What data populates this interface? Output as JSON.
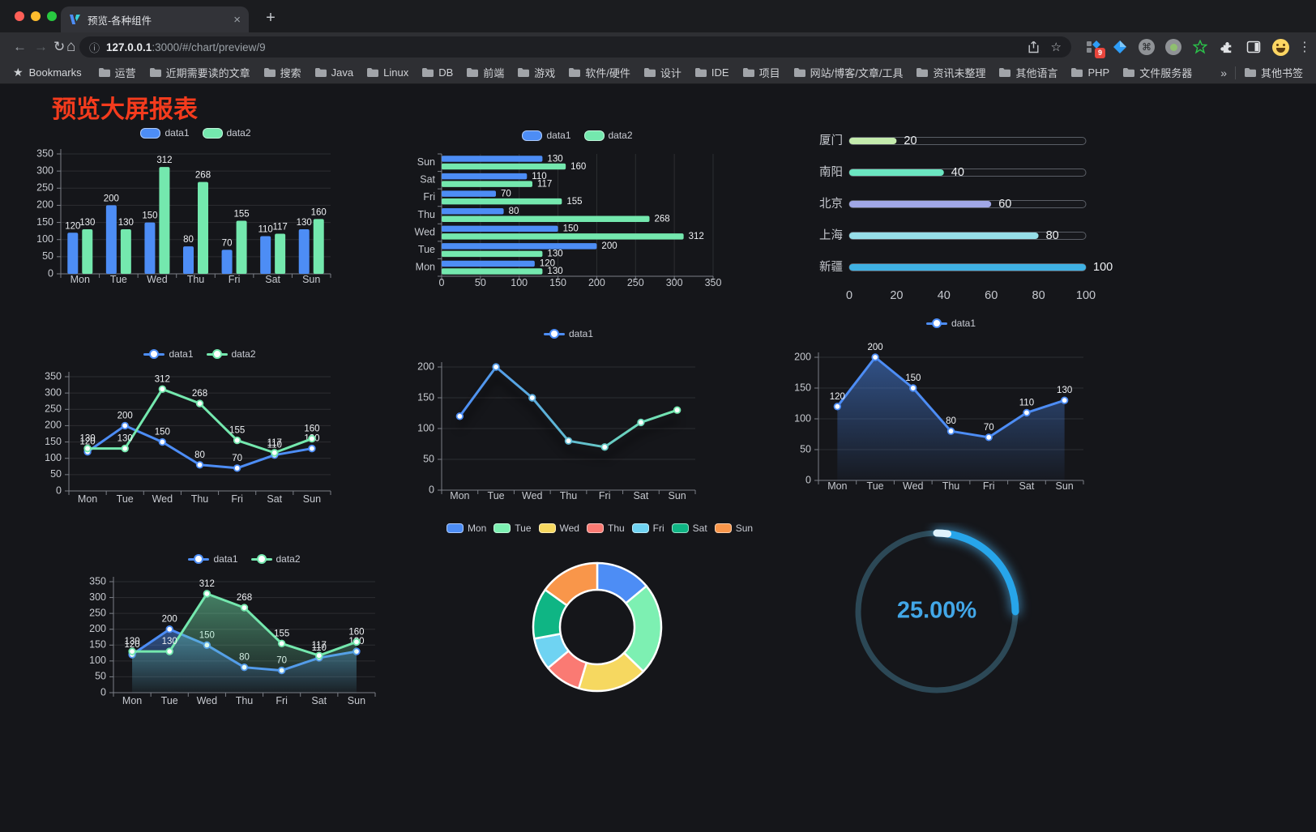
{
  "browser": {
    "tab_title": "预览-各种组件",
    "url_host": "127.0.0.1",
    "url_path": ":3000/#/chart/preview/9",
    "bookmarks_label": "Bookmarks",
    "bookmarks": [
      "运营",
      "近期需要读的文章",
      "搜索",
      "Java",
      "Linux",
      "DB",
      "前端",
      "游戏",
      "软件/硬件",
      "设计",
      "IDE",
      "项目",
      "网站/博客/文章/工具",
      "资讯未整理",
      "其他语言",
      "PHP",
      "文件服务器"
    ],
    "other_bookmarks": "其他书签",
    "extension_badge": "9",
    "icons": {
      "back": "←",
      "forward": "→",
      "reload": "↻",
      "home": "⌂",
      "info": "ⓘ",
      "star": "☆",
      "close": "×",
      "new_tab": "+",
      "more": "⋮",
      "overflow": "»",
      "cmd": "⌘",
      "bookmarks_star": "★"
    }
  },
  "page": {
    "title": "预览大屏报表"
  },
  "palette": {
    "data1": "#4d8df5",
    "data2": "#74e8ae",
    "axis_text": "#c6c9cf",
    "value_text": "#eef0f3",
    "grid": "rgba(255,255,255,0.10)",
    "axis_line": "#7b7f87",
    "title_red": "#f43b1d",
    "page_bg": "#15161a"
  },
  "chart_data": [
    {
      "id": "grouped-bar",
      "type": "bar",
      "categories": [
        "Mon",
        "Tue",
        "Wed",
        "Thu",
        "Fri",
        "Sat",
        "Sun"
      ],
      "series": [
        {
          "name": "data1",
          "color": "#4d8df5",
          "values": [
            120,
            200,
            150,
            80,
            70,
            110,
            130
          ]
        },
        {
          "name": "data2",
          "color": "#74e8ae",
          "values": [
            130,
            130,
            312,
            268,
            155,
            117,
            160
          ]
        }
      ],
      "ylim": [
        0,
        350
      ],
      "yticks": [
        0,
        50,
        100,
        150,
        200,
        250,
        300,
        350
      ],
      "legend_position": "top",
      "value_labels": true
    },
    {
      "id": "grouped-hbar",
      "type": "hbar",
      "categories": [
        "Mon",
        "Tue",
        "Wed",
        "Thu",
        "Fri",
        "Sat",
        "Sun"
      ],
      "display_top_to_bottom": [
        "Sun",
        "Sat",
        "Fri",
        "Thu",
        "Wed",
        "Tue",
        "Mon"
      ],
      "series": [
        {
          "name": "data1",
          "color": "#4d8df5",
          "values": [
            120,
            200,
            150,
            80,
            70,
            110,
            130
          ]
        },
        {
          "name": "data2",
          "color": "#74e8ae",
          "values": [
            130,
            130,
            312,
            268,
            155,
            117,
            160
          ]
        }
      ],
      "xlim": [
        0,
        350
      ],
      "xticks": [
        0,
        50,
        100,
        150,
        200,
        250,
        300,
        350
      ],
      "legend_position": "top",
      "value_labels": true
    },
    {
      "id": "progress",
      "type": "bar",
      "variant": "progress-bars",
      "rows": [
        {
          "label": "厦门",
          "value": 20,
          "color": "#c4ebad"
        },
        {
          "label": "南阳",
          "value": 40,
          "color": "#6be6c1"
        },
        {
          "label": "北京",
          "value": 60,
          "color": "#a0a7e6"
        },
        {
          "label": "上海",
          "value": 80,
          "color": "#96dee8"
        },
        {
          "label": "新疆",
          "value": 100,
          "color": "#3fb1e3"
        }
      ],
      "xlim": [
        0,
        100
      ],
      "xticks": [
        0,
        20,
        40,
        60,
        80,
        100
      ]
    },
    {
      "id": "line-dual",
      "type": "line",
      "categories": [
        "Mon",
        "Tue",
        "Wed",
        "Thu",
        "Fri",
        "Sat",
        "Sun"
      ],
      "series": [
        {
          "name": "data1",
          "color": "#4d8df5",
          "values": [
            120,
            200,
            150,
            80,
            70,
            110,
            130
          ]
        },
        {
          "name": "data2",
          "color": "#74e8ae",
          "values": [
            130,
            130,
            312,
            268,
            155,
            117,
            160
          ]
        }
      ],
      "ylim": [
        0,
        350
      ],
      "yticks": [
        0,
        50,
        100,
        150,
        200,
        250,
        300,
        350
      ],
      "legend_position": "top",
      "value_labels": true
    },
    {
      "id": "line-gradient",
      "type": "line",
      "categories": [
        "Mon",
        "Tue",
        "Wed",
        "Thu",
        "Fri",
        "Sat",
        "Sun"
      ],
      "series": [
        {
          "name": "data1",
          "gradient": [
            "#4d8df5",
            "#74e8ae"
          ],
          "values": [
            120,
            200,
            150,
            80,
            70,
            110,
            130
          ]
        }
      ],
      "ylim": [
        0,
        200
      ],
      "yticks": [
        0,
        50,
        100,
        150,
        200
      ],
      "legend_position": "top",
      "value_labels": false
    },
    {
      "id": "area-single",
      "type": "area",
      "categories": [
        "Mon",
        "Tue",
        "Wed",
        "Thu",
        "Fri",
        "Sat",
        "Sun"
      ],
      "series": [
        {
          "name": "data1",
          "color": "#4d8df5",
          "values": [
            120,
            200,
            150,
            80,
            70,
            110,
            130
          ]
        }
      ],
      "ylim": [
        0,
        200
      ],
      "yticks": [
        0,
        50,
        100,
        150,
        200
      ],
      "legend_position": "top",
      "value_labels": true
    },
    {
      "id": "area-dual",
      "type": "area",
      "categories": [
        "Mon",
        "Tue",
        "Wed",
        "Thu",
        "Fri",
        "Sat",
        "Sun"
      ],
      "series": [
        {
          "name": "data1",
          "color": "#4d8df5",
          "values": [
            120,
            200,
            150,
            80,
            70,
            110,
            130
          ]
        },
        {
          "name": "data2",
          "color": "#74e8ae",
          "values": [
            130,
            130,
            312,
            268,
            155,
            117,
            160
          ]
        }
      ],
      "ylim": [
        0,
        350
      ],
      "yticks": [
        0,
        50,
        100,
        150,
        200,
        250,
        300,
        350
      ],
      "legend_position": "top",
      "value_labels": true
    },
    {
      "id": "donut",
      "type": "pie",
      "categories": [
        "Mon",
        "Tue",
        "Wed",
        "Thu",
        "Fri",
        "Sat",
        "Sun"
      ],
      "values": [
        120,
        200,
        150,
        80,
        70,
        110,
        130
      ],
      "colors": [
        "#4d8df5",
        "#7df0b2",
        "#f6d860",
        "#fa7a73",
        "#6fd3f2",
        "#0fb584",
        "#f9964a"
      ],
      "inner_radius_ratio": 0.58,
      "legend_position": "top"
    },
    {
      "id": "gauge",
      "type": "gauge",
      "percent": 25,
      "label": "25.00%",
      "color": "#27a5ea",
      "track_color": "#2c4856",
      "text_color": "#42a7e8"
    }
  ]
}
